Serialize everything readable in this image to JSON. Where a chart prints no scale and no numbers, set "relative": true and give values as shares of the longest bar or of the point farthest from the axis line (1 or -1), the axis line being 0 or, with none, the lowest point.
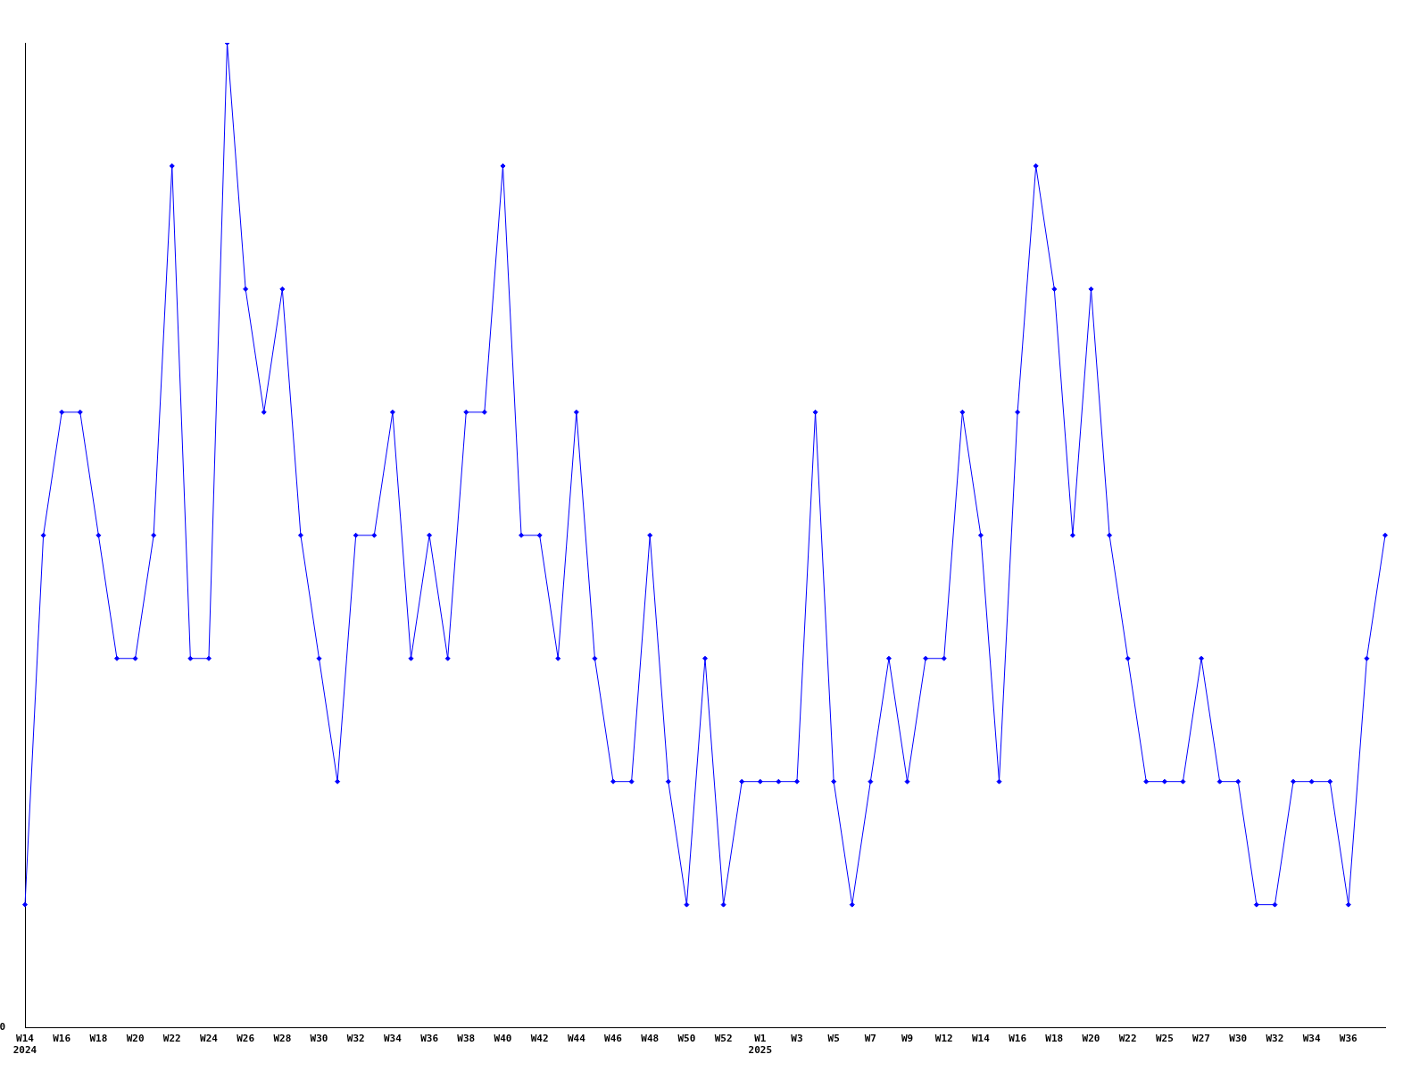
{
  "chart_data": {
    "type": "line",
    "relative": true,
    "legend": false,
    "grid": false,
    "marker": "diamond",
    "line_style": "solid",
    "categories": [
      "W14\n2024",
      null,
      "W16",
      null,
      "W18",
      null,
      "W20",
      null,
      "W22",
      null,
      "W24",
      null,
      "W26",
      null,
      "W28",
      null,
      "W30",
      null,
      "W32",
      null,
      "W34",
      null,
      "W36",
      null,
      "W38",
      null,
      "W40",
      null,
      "W42",
      null,
      "W44",
      null,
      "W46",
      null,
      "W48",
      null,
      "W50",
      null,
      "W52",
      null,
      "W1\n2025",
      null,
      "W3",
      null,
      "W5",
      null,
      "W7",
      null,
      "W9",
      null,
      "W12",
      null,
      "W14",
      null,
      "W16",
      null,
      "W18",
      null,
      "W20",
      null,
      "W22",
      null,
      "W25",
      null,
      "W27",
      null,
      "W30",
      null,
      "W32",
      null,
      "W34",
      null,
      "W36",
      null,
      null
    ],
    "series": [
      {
        "color": "#0000ff",
        "values": [
          0.125,
          0.5,
          0.625,
          0.625,
          0.5,
          0.375,
          0.375,
          0.5,
          0.875,
          0.375,
          0.375,
          1,
          0.75,
          0.625,
          0.75,
          0.5,
          0.375,
          0.25,
          0.5,
          0.5,
          0.625,
          0.375,
          0.5,
          0.375,
          0.625,
          0.625,
          0.875,
          0.5,
          0.5,
          0.375,
          0.625,
          0.375,
          0.25,
          0.25,
          0.5,
          0.25,
          0.125,
          0.375,
          0.125,
          0.25,
          0.25,
          0.25,
          0.25,
          0.625,
          0.25,
          0.125,
          0.25,
          0.375,
          0.25,
          0.375,
          0.375,
          0.625,
          0.5,
          0.25,
          0.625,
          0.875,
          0.75,
          0.5,
          0.75,
          0.5,
          0.375,
          0.25,
          0.25,
          0.25,
          0.375,
          0.25,
          0.25,
          0.125,
          0.125,
          0.25,
          0.25,
          0.25,
          0.125,
          0.375,
          0.5
        ]
      }
    ],
    "annotations": [
      "0"
    ]
  }
}
